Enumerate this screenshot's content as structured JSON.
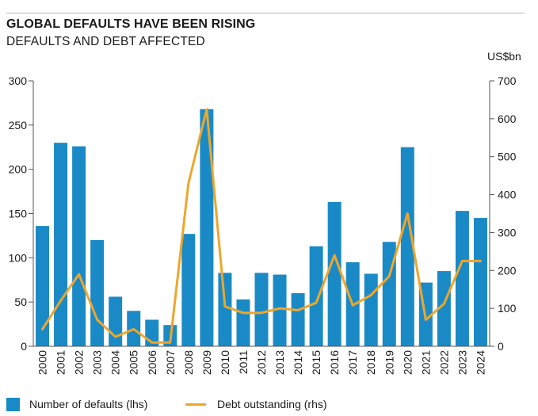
{
  "header": {
    "title": "GLOBAL DEFAULTS HAVE BEEN RISING",
    "subtitle": "DEFAULTS AND DEBT AFFECTED"
  },
  "colors": {
    "bars": "#1a8ac6",
    "line": "#eea62c",
    "axis": "#555555"
  },
  "chart_data": {
    "type": "bar",
    "title": "GLOBAL DEFAULTS HAVE BEEN RISING",
    "subtitle": "DEFAULTS AND DEBT AFFECTED",
    "categories": [
      "2000",
      "2001",
      "2002",
      "2003",
      "2004",
      "2005",
      "2006",
      "2007",
      "2008",
      "2009",
      "2010",
      "2011",
      "2012",
      "2013",
      "2014",
      "2015",
      "2016",
      "2017",
      "2018",
      "2019",
      "2020",
      "2021",
      "2022",
      "2023",
      "2024"
    ],
    "left_axis": {
      "ylim": [
        0,
        300
      ],
      "ticks": [
        0,
        50,
        100,
        150,
        200,
        250,
        300
      ]
    },
    "right_axis": {
      "label": "US$bn",
      "ylim": [
        0,
        700
      ],
      "ticks": [
        0,
        100,
        200,
        300,
        400,
        500,
        600,
        700
      ]
    },
    "series": [
      {
        "name": "Number of defaults (lhs)",
        "type": "bar",
        "axis": "left",
        "values": [
          136,
          230,
          226,
          120,
          56,
          40,
          30,
          24,
          127,
          268,
          83,
          53,
          83,
          81,
          60,
          113,
          163,
          95,
          82,
          118,
          225,
          72,
          85,
          153,
          145
        ]
      },
      {
        "name": "Debt outstanding (rhs)",
        "type": "line",
        "axis": "right",
        "values": [
          45,
          120,
          190,
          70,
          25,
          45,
          10,
          10,
          430,
          625,
          105,
          88,
          88,
          100,
          95,
          115,
          240,
          108,
          135,
          185,
          350,
          70,
          112,
          225,
          225
        ]
      }
    ],
    "legend_position": "bottom",
    "grid": false
  },
  "legend": {
    "items": [
      {
        "label": "Number of defaults (lhs)"
      },
      {
        "label": "Debt outstanding (rhs)"
      }
    ]
  }
}
